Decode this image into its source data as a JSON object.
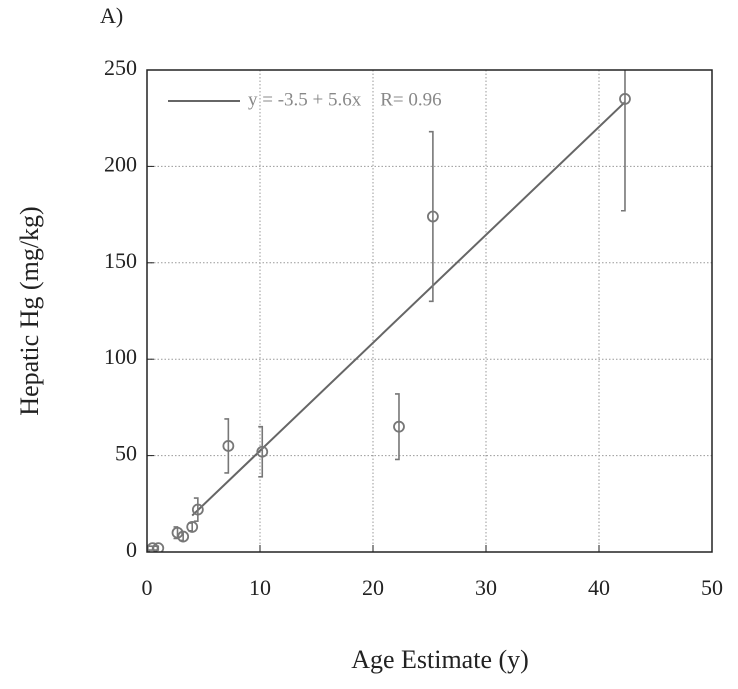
{
  "chart_data": {
    "type": "scatter",
    "title": "A)",
    "xlabel": "Age Estimate (y)",
    "ylabel": "Hepatic Hg (mg/kg)",
    "xlim": [
      0,
      50
    ],
    "xticks": [
      0,
      10,
      20,
      30,
      40,
      50
    ],
    "ylim": [
      0,
      250
    ],
    "yticks": [
      0,
      50,
      100,
      150,
      200,
      250
    ],
    "grid": true,
    "series": [
      {
        "color": "#777777",
        "x": [
          0.5,
          1,
          2.7,
          3.2,
          4,
          4.5,
          7.2,
          10.2,
          22.3,
          25.3,
          42.3
        ],
        "values": [
          2,
          2,
          10,
          8,
          13,
          22,
          55,
          52,
          65,
          174,
          235
        ],
        "errors": [
          1,
          1,
          3,
          2,
          2,
          6,
          14,
          13,
          17,
          44,
          58
        ]
      }
    ],
    "fit": {
      "intercept": -3.5,
      "slope": 5.6,
      "x_range": [
        4,
        42.3
      ],
      "color": "#666666",
      "label": "y = -3.5 + 5.6x    R= 0.96"
    }
  }
}
